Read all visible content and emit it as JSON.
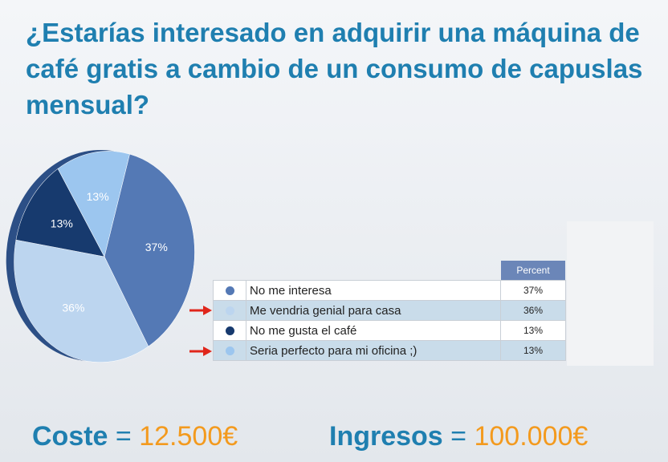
{
  "title": "¿Estarías interesado en adquirir una máquina de café gratis a cambio de un consumo de capuslas mensual?",
  "chart_data": {
    "type": "pie",
    "categories": [
      "No me interesa",
      "Me vendria genial para casa",
      "No me gusta el café",
      "Seria perfecto para mi oficina ;)"
    ],
    "values": [
      37,
      36,
      13,
      13
    ],
    "value_labels": [
      "37%",
      "36%",
      "13%",
      "13%"
    ],
    "colors": [
      "#5479b5",
      "#bcd5ef",
      "#173a6e",
      "#9cc6ef"
    ],
    "table_header": "Percent",
    "highlighted": [
      false,
      true,
      false,
      true
    ]
  },
  "footer": {
    "coste_label": "Coste",
    "coste_eq": "=",
    "coste_value": "12.500€",
    "ingresos_label": "Ingresos",
    "ingresos_eq": "=",
    "ingresos_value": "100.000€"
  }
}
